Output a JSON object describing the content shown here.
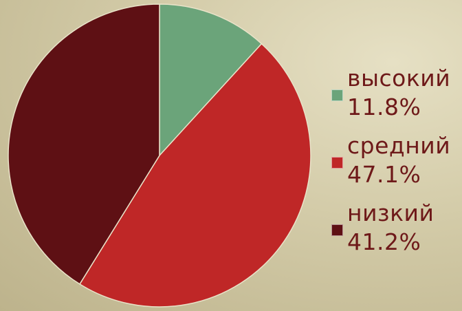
{
  "chart_data": {
    "type": "pie",
    "start_angle_deg": 0,
    "direction": "clockwise",
    "legend_position": "right",
    "slices": [
      {
        "label": "высокий",
        "percent_label": "11.8%",
        "value": 11.8,
        "color": "#6ba47a"
      },
      {
        "label": "средний",
        "percent_label": "47.1%",
        "value": 47.1,
        "color": "#bf2727"
      },
      {
        "label": "низкий",
        "percent_label": "41.2%",
        "value": 41.2,
        "color": "#5e1014"
      }
    ]
  }
}
